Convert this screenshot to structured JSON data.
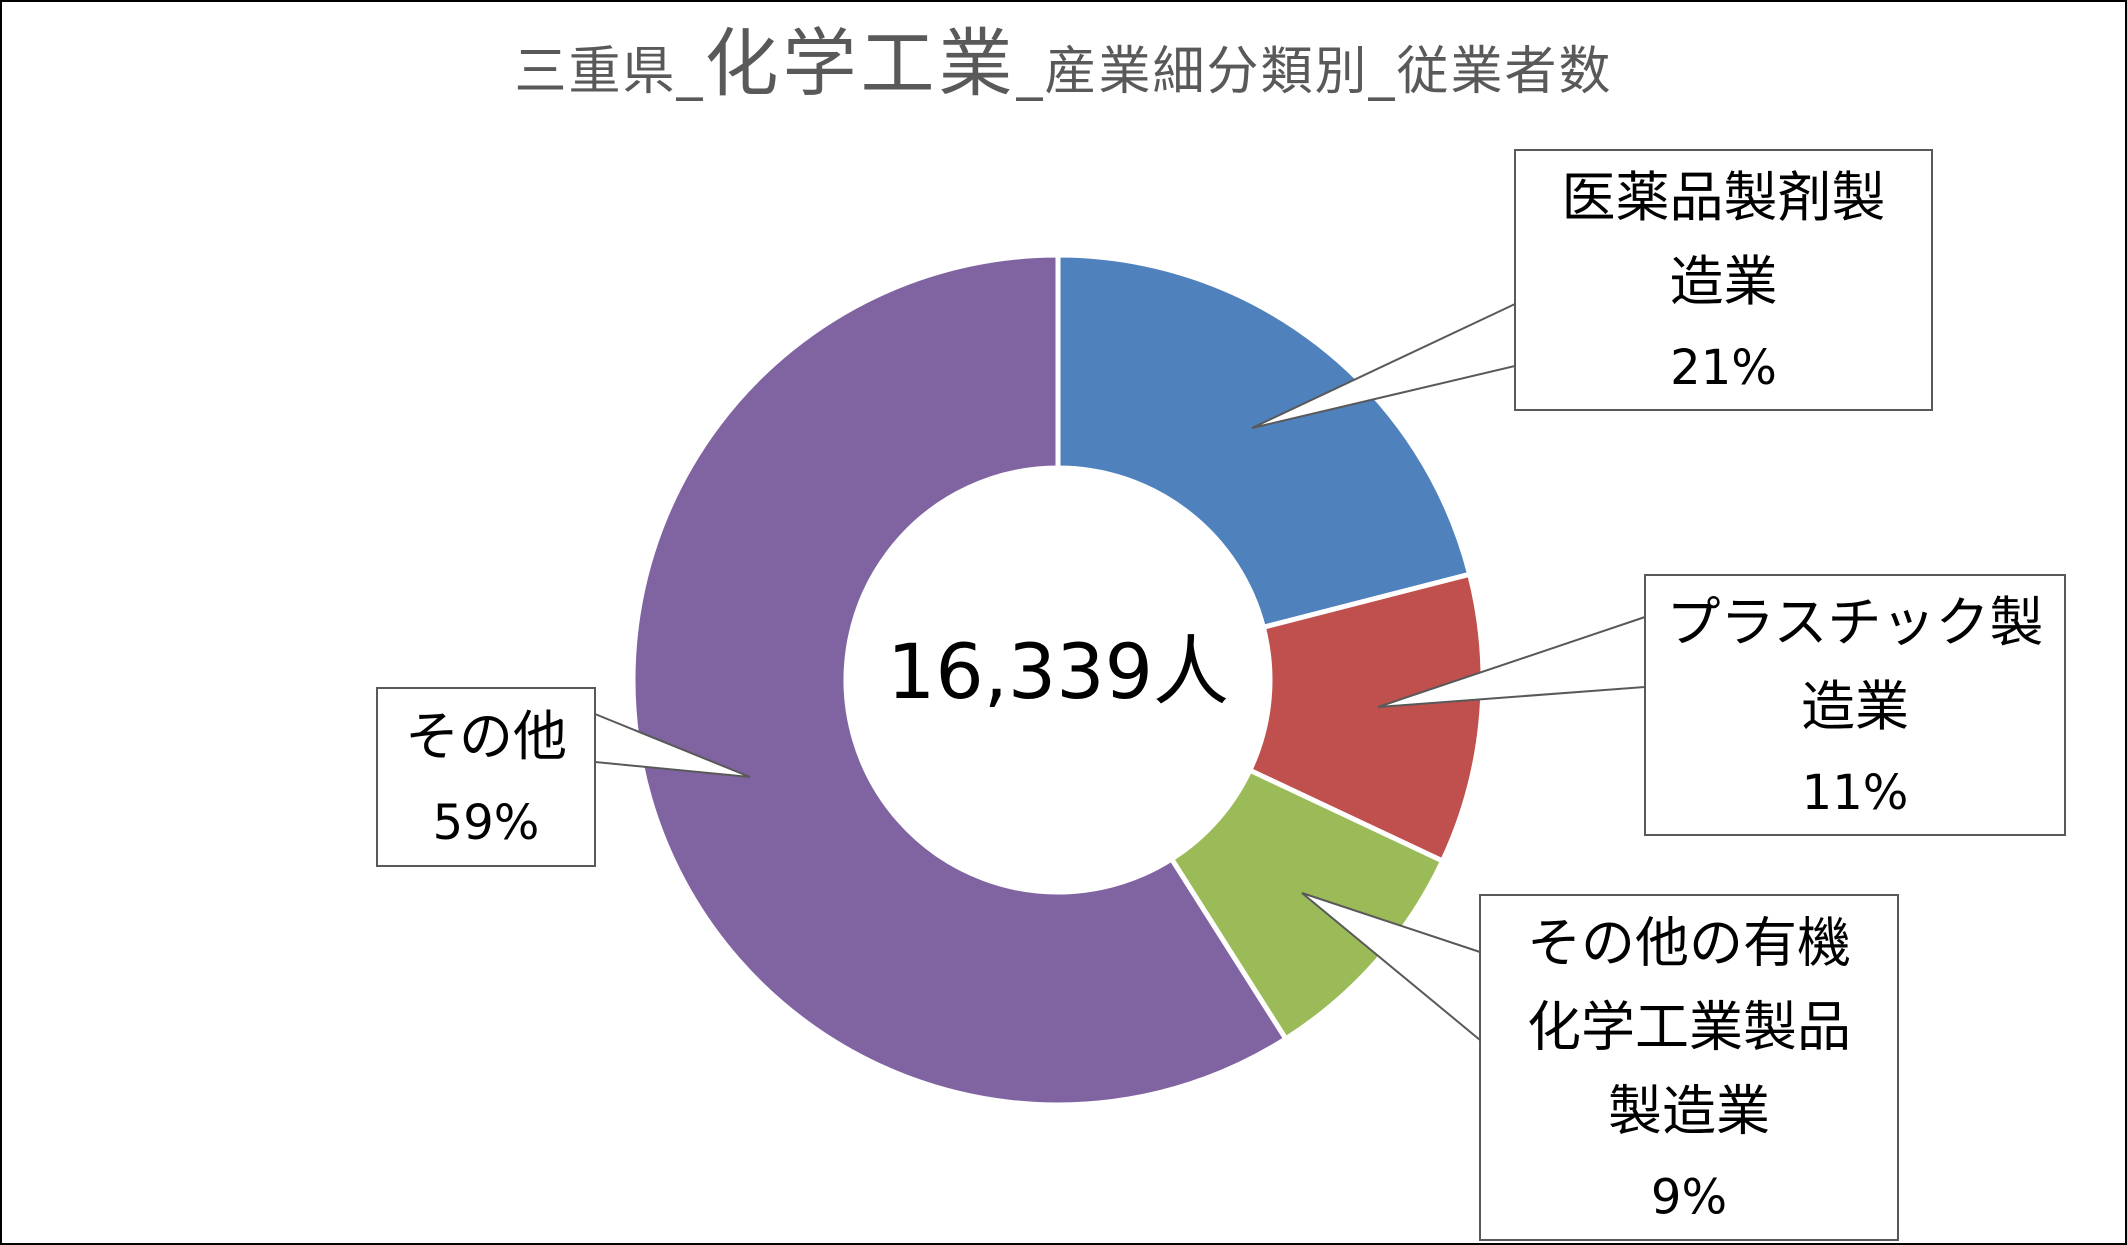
{
  "chart_data": {
    "type": "pie",
    "title": "三重県_化学工業_産業細分類別_従業者数",
    "title_parts": [
      {
        "text": "三重県_",
        "size": "small"
      },
      {
        "text": "化学工業",
        "size": "big"
      },
      {
        "text": "_産業細分類別_従業者数",
        "size": "small"
      }
    ],
    "center_label": "16,339人",
    "slices": [
      {
        "label_lines": [
          "医薬品製剤製",
          "造業"
        ],
        "percent_label": "21%",
        "value": 21,
        "color": "#4F81BD"
      },
      {
        "label_lines": [
          "プラスチック製",
          "造業"
        ],
        "percent_label": "11%",
        "value": 11,
        "color": "#C0504D"
      },
      {
        "label_lines": [
          "その他の有機",
          "化学工業製品",
          "製造業"
        ],
        "percent_label": "9%",
        "value": 9,
        "color": "#9BBB59"
      },
      {
        "label_lines": [
          "その他"
        ],
        "percent_label": "59%",
        "value": 59,
        "color": "#8064A2"
      }
    ]
  }
}
